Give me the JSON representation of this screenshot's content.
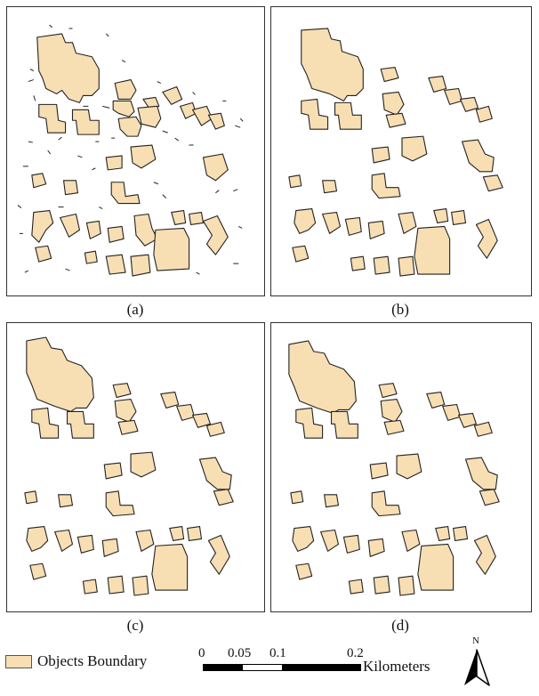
{
  "panels": [
    {
      "caption": "(a)"
    },
    {
      "caption": "(b)"
    },
    {
      "caption": "(c)"
    },
    {
      "caption": "(d)"
    }
  ],
  "legend": {
    "label": "Objects Boundary",
    "fill_color": "#f8deb3"
  },
  "scale_bar": {
    "ticks": [
      "0",
      "0.05",
      "0.1",
      "0.2"
    ],
    "unit": "Kilometers"
  },
  "north_arrow": {
    "label": "N"
  }
}
